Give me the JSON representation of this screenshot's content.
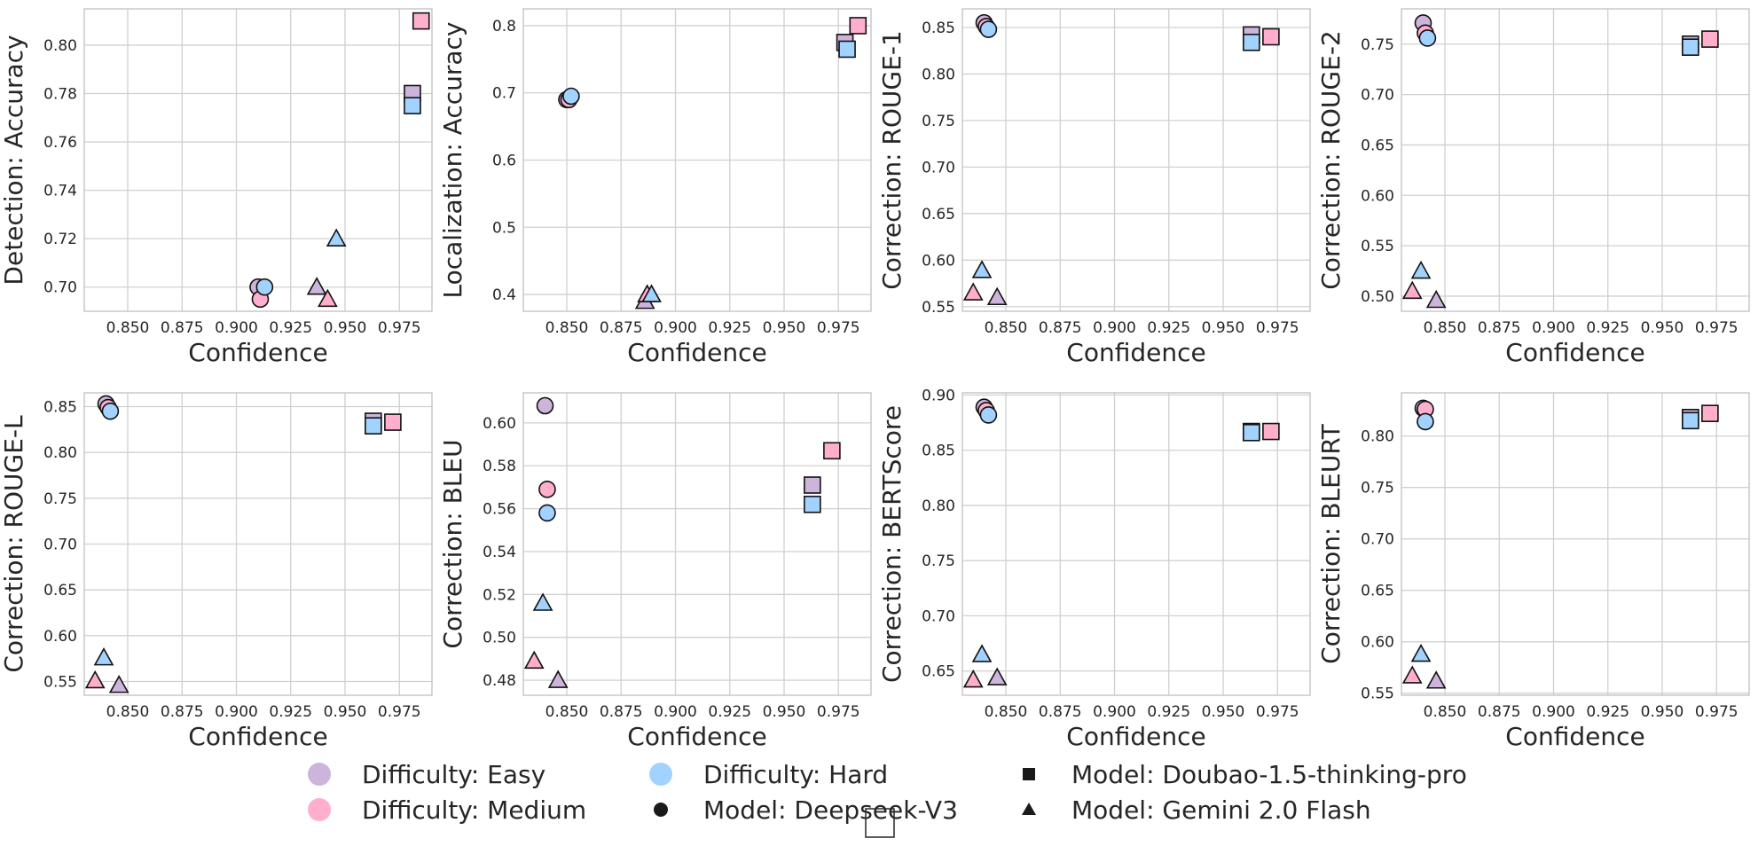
{
  "colors": {
    "easy": "#cdb4db",
    "medium": "#ffafcc",
    "hard": "#a2d2ff",
    "edge": "#111111",
    "grid": "#d0d0d0",
    "legend_black": "#1a1a1a"
  },
  "legend": {
    "items": [
      {
        "label": "Difficulty: Easy",
        "kind": "difficulty",
        "key": "easy"
      },
      {
        "label": "Difficulty: Medium",
        "kind": "difficulty",
        "key": "medium"
      },
      {
        "label": "Difficulty: Hard",
        "kind": "difficulty",
        "key": "hard"
      },
      {
        "label": "Model: Deepseek-V3",
        "kind": "model",
        "key": "circle"
      },
      {
        "label": "Model: Doubao-1.5-thinking-pro",
        "kind": "model",
        "key": "square"
      },
      {
        "label": "Model: Gemini 2.0 Flash",
        "kind": "model",
        "key": "triangle"
      }
    ]
  },
  "chart_data": [
    {
      "type": "scatter",
      "xlabel": "Confidence",
      "ylabel": "Detection: Accuracy",
      "xlim": [
        0.83,
        0.99
      ],
      "ylim": [
        0.69,
        0.815
      ],
      "xticks": [
        "0.850",
        "0.875",
        "0.900",
        "0.925",
        "0.950",
        "0.975"
      ],
      "yticks": [
        "0.70",
        "0.72",
        "0.74",
        "0.76",
        "0.78",
        "0.80"
      ],
      "series": [
        {
          "model": "Deepseek-V3",
          "marker": "circle",
          "difficulty": "easy",
          "x": 0.91,
          "y": 0.7
        },
        {
          "model": "Deepseek-V3",
          "marker": "circle",
          "difficulty": "medium",
          "x": 0.911,
          "y": 0.695
        },
        {
          "model": "Deepseek-V3",
          "marker": "circle",
          "difficulty": "hard",
          "x": 0.913,
          "y": 0.7
        },
        {
          "model": "Doubao-1.5-thinking-pro",
          "marker": "square",
          "difficulty": "easy",
          "x": 0.981,
          "y": 0.78
        },
        {
          "model": "Doubao-1.5-thinking-pro",
          "marker": "square",
          "difficulty": "medium",
          "x": 0.985,
          "y": 0.81
        },
        {
          "model": "Doubao-1.5-thinking-pro",
          "marker": "square",
          "difficulty": "hard",
          "x": 0.981,
          "y": 0.775
        },
        {
          "model": "Gemini 2.0 Flash",
          "marker": "triangle",
          "difficulty": "easy",
          "x": 0.937,
          "y": 0.7
        },
        {
          "model": "Gemini 2.0 Flash",
          "marker": "triangle",
          "difficulty": "medium",
          "x": 0.942,
          "y": 0.695
        },
        {
          "model": "Gemini 2.0 Flash",
          "marker": "triangle",
          "difficulty": "hard",
          "x": 0.946,
          "y": 0.72
        }
      ]
    },
    {
      "type": "scatter",
      "xlabel": "Confidence",
      "ylabel": "Localization: Accuracy",
      "xlim": [
        0.83,
        0.99
      ],
      "ylim": [
        0.375,
        0.825
      ],
      "xticks": [
        "0.850",
        "0.875",
        "0.900",
        "0.925",
        "0.950",
        "0.975"
      ],
      "yticks": [
        "0.4",
        "0.5",
        "0.6",
        "0.7",
        "0.8"
      ],
      "series": [
        {
          "model": "Deepseek-V3",
          "marker": "circle",
          "difficulty": "easy",
          "x": 0.85,
          "y": 0.69
        },
        {
          "model": "Deepseek-V3",
          "marker": "circle",
          "difficulty": "medium",
          "x": 0.851,
          "y": 0.69
        },
        {
          "model": "Deepseek-V3",
          "marker": "circle",
          "difficulty": "hard",
          "x": 0.852,
          "y": 0.695
        },
        {
          "model": "Doubao-1.5-thinking-pro",
          "marker": "square",
          "difficulty": "easy",
          "x": 0.978,
          "y": 0.775
        },
        {
          "model": "Doubao-1.5-thinking-pro",
          "marker": "square",
          "difficulty": "medium",
          "x": 0.984,
          "y": 0.8
        },
        {
          "model": "Doubao-1.5-thinking-pro",
          "marker": "square",
          "difficulty": "hard",
          "x": 0.979,
          "y": 0.765
        },
        {
          "model": "Gemini 2.0 Flash",
          "marker": "triangle",
          "difficulty": "easy",
          "x": 0.886,
          "y": 0.39
        },
        {
          "model": "Gemini 2.0 Flash",
          "marker": "triangle",
          "difficulty": "medium",
          "x": 0.887,
          "y": 0.4
        },
        {
          "model": "Gemini 2.0 Flash",
          "marker": "triangle",
          "difficulty": "hard",
          "x": 0.889,
          "y": 0.4
        }
      ]
    },
    {
      "type": "scatter",
      "xlabel": "Confidence",
      "ylabel": "Correction: ROUGE-1",
      "xlim": [
        0.83,
        0.99
      ],
      "ylim": [
        0.545,
        0.87
      ],
      "xticks": [
        "0.850",
        "0.875",
        "0.900",
        "0.925",
        "0.950",
        "0.975"
      ],
      "yticks": [
        "0.55",
        "0.60",
        "0.65",
        "0.70",
        "0.75",
        "0.80",
        "0.85"
      ],
      "series": [
        {
          "model": "Deepseek-V3",
          "marker": "circle",
          "difficulty": "easy",
          "x": 0.84,
          "y": 0.855
        },
        {
          "model": "Deepseek-V3",
          "marker": "circle",
          "difficulty": "medium",
          "x": 0.841,
          "y": 0.851
        },
        {
          "model": "Deepseek-V3",
          "marker": "circle",
          "difficulty": "hard",
          "x": 0.842,
          "y": 0.848
        },
        {
          "model": "Doubao-1.5-thinking-pro",
          "marker": "square",
          "difficulty": "easy",
          "x": 0.963,
          "y": 0.842
        },
        {
          "model": "Doubao-1.5-thinking-pro",
          "marker": "square",
          "difficulty": "medium",
          "x": 0.972,
          "y": 0.84
        },
        {
          "model": "Doubao-1.5-thinking-pro",
          "marker": "square",
          "difficulty": "hard",
          "x": 0.963,
          "y": 0.834
        },
        {
          "model": "Gemini 2.0 Flash",
          "marker": "triangle",
          "difficulty": "easy",
          "x": 0.846,
          "y": 0.56
        },
        {
          "model": "Gemini 2.0 Flash",
          "marker": "triangle",
          "difficulty": "medium",
          "x": 0.835,
          "y": 0.565
        },
        {
          "model": "Gemini 2.0 Flash",
          "marker": "triangle",
          "difficulty": "hard",
          "x": 0.839,
          "y": 0.589
        }
      ]
    },
    {
      "type": "scatter",
      "xlabel": "Confidence",
      "ylabel": "Correction: ROUGE-2",
      "xlim": [
        0.83,
        0.99
      ],
      "ylim": [
        0.485,
        0.785
      ],
      "xticks": [
        "0.850",
        "0.875",
        "0.900",
        "0.925",
        "0.950",
        "0.975"
      ],
      "yticks": [
        "0.50",
        "0.55",
        "0.60",
        "0.65",
        "0.70",
        "0.75"
      ],
      "series": [
        {
          "model": "Deepseek-V3",
          "marker": "circle",
          "difficulty": "easy",
          "x": 0.84,
          "y": 0.771
        },
        {
          "model": "Deepseek-V3",
          "marker": "circle",
          "difficulty": "medium",
          "x": 0.841,
          "y": 0.761
        },
        {
          "model": "Deepseek-V3",
          "marker": "circle",
          "difficulty": "hard",
          "x": 0.842,
          "y": 0.756
        },
        {
          "model": "Doubao-1.5-thinking-pro",
          "marker": "square",
          "difficulty": "easy",
          "x": 0.963,
          "y": 0.75
        },
        {
          "model": "Doubao-1.5-thinking-pro",
          "marker": "square",
          "difficulty": "medium",
          "x": 0.972,
          "y": 0.755
        },
        {
          "model": "Doubao-1.5-thinking-pro",
          "marker": "square",
          "difficulty": "hard",
          "x": 0.963,
          "y": 0.747
        },
        {
          "model": "Gemini 2.0 Flash",
          "marker": "triangle",
          "difficulty": "easy",
          "x": 0.846,
          "y": 0.496
        },
        {
          "model": "Gemini 2.0 Flash",
          "marker": "triangle",
          "difficulty": "medium",
          "x": 0.835,
          "y": 0.505
        },
        {
          "model": "Gemini 2.0 Flash",
          "marker": "triangle",
          "difficulty": "hard",
          "x": 0.839,
          "y": 0.525
        }
      ]
    },
    {
      "type": "scatter",
      "xlabel": "Confidence",
      "ylabel": "Correction: ROUGE-L",
      "xlim": [
        0.83,
        0.99
      ],
      "ylim": [
        0.535,
        0.865
      ],
      "xticks": [
        "0.850",
        "0.875",
        "0.900",
        "0.925",
        "0.950",
        "0.975"
      ],
      "yticks": [
        "0.55",
        "0.60",
        "0.65",
        "0.70",
        "0.75",
        "0.80",
        "0.85"
      ],
      "series": [
        {
          "model": "Deepseek-V3",
          "marker": "circle",
          "difficulty": "easy",
          "x": 0.84,
          "y": 0.853
        },
        {
          "model": "Deepseek-V3",
          "marker": "circle",
          "difficulty": "medium",
          "x": 0.841,
          "y": 0.849
        },
        {
          "model": "Deepseek-V3",
          "marker": "circle",
          "difficulty": "hard",
          "x": 0.842,
          "y": 0.845
        },
        {
          "model": "Doubao-1.5-thinking-pro",
          "marker": "square",
          "difficulty": "easy",
          "x": 0.963,
          "y": 0.834
        },
        {
          "model": "Doubao-1.5-thinking-pro",
          "marker": "square",
          "difficulty": "medium",
          "x": 0.972,
          "y": 0.833
        },
        {
          "model": "Doubao-1.5-thinking-pro",
          "marker": "square",
          "difficulty": "hard",
          "x": 0.963,
          "y": 0.829
        },
        {
          "model": "Gemini 2.0 Flash",
          "marker": "triangle",
          "difficulty": "easy",
          "x": 0.846,
          "y": 0.546
        },
        {
          "model": "Gemini 2.0 Flash",
          "marker": "triangle",
          "difficulty": "medium",
          "x": 0.835,
          "y": 0.551
        },
        {
          "model": "Gemini 2.0 Flash",
          "marker": "triangle",
          "difficulty": "hard",
          "x": 0.839,
          "y": 0.576
        }
      ]
    },
    {
      "type": "scatter",
      "xlabel": "Confidence",
      "ylabel": "Correction: BLEU",
      "xlim": [
        0.83,
        0.99
      ],
      "ylim": [
        0.473,
        0.614
      ],
      "xticks": [
        "0.850",
        "0.875",
        "0.900",
        "0.925",
        "0.950",
        "0.975"
      ],
      "yticks": [
        "0.48",
        "0.50",
        "0.52",
        "0.54",
        "0.56",
        "0.58",
        "0.60"
      ],
      "series": [
        {
          "model": "Deepseek-V3",
          "marker": "circle",
          "difficulty": "easy",
          "x": 0.84,
          "y": 0.608
        },
        {
          "model": "Deepseek-V3",
          "marker": "circle",
          "difficulty": "medium",
          "x": 0.841,
          "y": 0.569
        },
        {
          "model": "Deepseek-V3",
          "marker": "circle",
          "difficulty": "hard",
          "x": 0.841,
          "y": 0.558
        },
        {
          "model": "Doubao-1.5-thinking-pro",
          "marker": "square",
          "difficulty": "easy",
          "x": 0.963,
          "y": 0.571
        },
        {
          "model": "Doubao-1.5-thinking-pro",
          "marker": "square",
          "difficulty": "medium",
          "x": 0.972,
          "y": 0.587
        },
        {
          "model": "Doubao-1.5-thinking-pro",
          "marker": "square",
          "difficulty": "hard",
          "x": 0.963,
          "y": 0.562
        },
        {
          "model": "Gemini 2.0 Flash",
          "marker": "triangle",
          "difficulty": "easy",
          "x": 0.846,
          "y": 0.48
        },
        {
          "model": "Gemini 2.0 Flash",
          "marker": "triangle",
          "difficulty": "medium",
          "x": 0.835,
          "y": 0.489
        },
        {
          "model": "Gemini 2.0 Flash",
          "marker": "triangle",
          "difficulty": "hard",
          "x": 0.839,
          "y": 0.516
        }
      ]
    },
    {
      "type": "scatter",
      "xlabel": "Confidence",
      "ylabel": "Correction: BERTScore",
      "xlim": [
        0.83,
        0.99
      ],
      "ylim": [
        0.628,
        0.902
      ],
      "xticks": [
        "0.850",
        "0.875",
        "0.900",
        "0.925",
        "0.950",
        "0.975"
      ],
      "yticks": [
        "0.65",
        "0.70",
        "0.75",
        "0.80",
        "0.85",
        "0.90"
      ],
      "series": [
        {
          "model": "Deepseek-V3",
          "marker": "circle",
          "difficulty": "easy",
          "x": 0.84,
          "y": 0.889
        },
        {
          "model": "Deepseek-V3",
          "marker": "circle",
          "difficulty": "medium",
          "x": 0.841,
          "y": 0.886
        },
        {
          "model": "Deepseek-V3",
          "marker": "circle",
          "difficulty": "hard",
          "x": 0.842,
          "y": 0.882
        },
        {
          "model": "Doubao-1.5-thinking-pro",
          "marker": "square",
          "difficulty": "easy",
          "x": 0.963,
          "y": 0.867
        },
        {
          "model": "Doubao-1.5-thinking-pro",
          "marker": "square",
          "difficulty": "medium",
          "x": 0.972,
          "y": 0.867
        },
        {
          "model": "Doubao-1.5-thinking-pro",
          "marker": "square",
          "difficulty": "hard",
          "x": 0.963,
          "y": 0.866
        },
        {
          "model": "Gemini 2.0 Flash",
          "marker": "triangle",
          "difficulty": "easy",
          "x": 0.846,
          "y": 0.644
        },
        {
          "model": "Gemini 2.0 Flash",
          "marker": "triangle",
          "difficulty": "medium",
          "x": 0.835,
          "y": 0.642
        },
        {
          "model": "Gemini 2.0 Flash",
          "marker": "triangle",
          "difficulty": "hard",
          "x": 0.839,
          "y": 0.665
        }
      ]
    },
    {
      "type": "scatter",
      "xlabel": "Confidence",
      "ylabel": "Correction: BLEURT",
      "xlim": [
        0.83,
        0.99
      ],
      "ylim": [
        0.548,
        0.842
      ],
      "xticks": [
        "0.850",
        "0.875",
        "0.900",
        "0.925",
        "0.950",
        "0.975"
      ],
      "yticks": [
        "0.55",
        "0.60",
        "0.65",
        "0.70",
        "0.75",
        "0.80"
      ],
      "series": [
        {
          "model": "Deepseek-V3",
          "marker": "circle",
          "difficulty": "easy",
          "x": 0.84,
          "y": 0.827
        },
        {
          "model": "Deepseek-V3",
          "marker": "circle",
          "difficulty": "medium",
          "x": 0.841,
          "y": 0.826
        },
        {
          "model": "Deepseek-V3",
          "marker": "circle",
          "difficulty": "hard",
          "x": 0.841,
          "y": 0.814
        },
        {
          "model": "Doubao-1.5-thinking-pro",
          "marker": "square",
          "difficulty": "easy",
          "x": 0.963,
          "y": 0.818
        },
        {
          "model": "Doubao-1.5-thinking-pro",
          "marker": "square",
          "difficulty": "medium",
          "x": 0.972,
          "y": 0.822
        },
        {
          "model": "Doubao-1.5-thinking-pro",
          "marker": "square",
          "difficulty": "hard",
          "x": 0.963,
          "y": 0.815
        },
        {
          "model": "Gemini 2.0 Flash",
          "marker": "triangle",
          "difficulty": "easy",
          "x": 0.846,
          "y": 0.562
        },
        {
          "model": "Gemini 2.0 Flash",
          "marker": "triangle",
          "difficulty": "medium",
          "x": 0.835,
          "y": 0.567
        },
        {
          "model": "Gemini 2.0 Flash",
          "marker": "triangle",
          "difficulty": "hard",
          "x": 0.839,
          "y": 0.588
        }
      ]
    }
  ]
}
